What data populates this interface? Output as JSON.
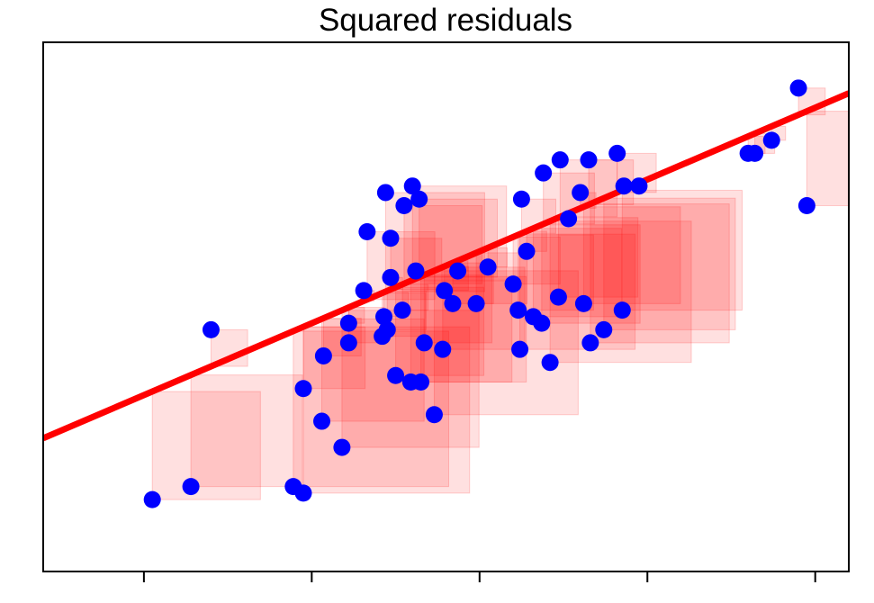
{
  "chart_data": {
    "type": "scatter",
    "title": "Squared residuals",
    "xlabel": "",
    "ylabel": "",
    "xlim": [
      -0.6,
      4.2
    ],
    "ylim": [
      -0.55,
      3.5
    ],
    "grid": false,
    "x_ticks": [
      0,
      1,
      2,
      3,
      4
    ],
    "y_ticks": [],
    "tick_labels_visible": false,
    "regression_line": {
      "intercept": 0.8,
      "slope": 0.55,
      "color": "#ff0000"
    },
    "squares": {
      "color": "#ff0000",
      "opacity": 0.12
    },
    "point_color": "#0000ff",
    "series": [
      {
        "points": [
          [
            0.05,
            0.0
          ],
          [
            0.4,
            1.3
          ],
          [
            0.28,
            0.1
          ],
          [
            0.95,
            0.05
          ],
          [
            0.89,
            0.1
          ],
          [
            0.95,
            0.85
          ],
          [
            1.06,
            0.6
          ],
          [
            1.07,
            1.1
          ],
          [
            1.18,
            0.4
          ],
          [
            1.22,
            1.2
          ],
          [
            1.22,
            1.35
          ],
          [
            1.31,
            1.6
          ],
          [
            1.33,
            2.05
          ],
          [
            1.42,
            1.25
          ],
          [
            1.43,
            1.4
          ],
          [
            1.44,
            2.35
          ],
          [
            1.47,
            1.7
          ],
          [
            1.47,
            2.0
          ],
          [
            1.45,
            1.3
          ],
          [
            1.5,
            0.95
          ],
          [
            1.54,
            1.45
          ],
          [
            1.55,
            2.25
          ],
          [
            1.59,
            0.9
          ],
          [
            1.62,
            1.75
          ],
          [
            1.64,
            2.3
          ],
          [
            1.67,
            1.2
          ],
          [
            1.65,
            0.9
          ],
          [
            1.78,
            1.15
          ],
          [
            1.79,
            1.6
          ],
          [
            1.6,
            2.4
          ],
          [
            1.73,
            0.65
          ],
          [
            1.84,
            1.5
          ],
          [
            1.87,
            1.75
          ],
          [
            1.98,
            1.5
          ],
          [
            2.05,
            1.78
          ],
          [
            2.2,
            1.65
          ],
          [
            2.23,
            1.45
          ],
          [
            2.28,
            1.9
          ],
          [
            2.32,
            1.4
          ],
          [
            2.24,
            1.15
          ],
          [
            2.37,
            1.35
          ],
          [
            2.42,
            1.05
          ],
          [
            2.47,
            1.55
          ],
          [
            2.48,
            2.6
          ],
          [
            2.53,
            2.15
          ],
          [
            2.6,
            2.35
          ],
          [
            2.62,
            1.5
          ],
          [
            2.65,
            2.6
          ],
          [
            2.66,
            1.2
          ],
          [
            2.74,
            1.3
          ],
          [
            2.82,
            2.65
          ],
          [
            2.86,
            2.4
          ],
          [
            2.85,
            1.45
          ],
          [
            2.95,
            2.4
          ],
          [
            3.6,
            2.65
          ],
          [
            3.64,
            2.65
          ],
          [
            3.74,
            2.75
          ],
          [
            3.9,
            3.15
          ],
          [
            3.95,
            2.25
          ],
          [
            2.25,
            2.3
          ],
          [
            2.38,
            2.5
          ]
        ]
      }
    ]
  }
}
